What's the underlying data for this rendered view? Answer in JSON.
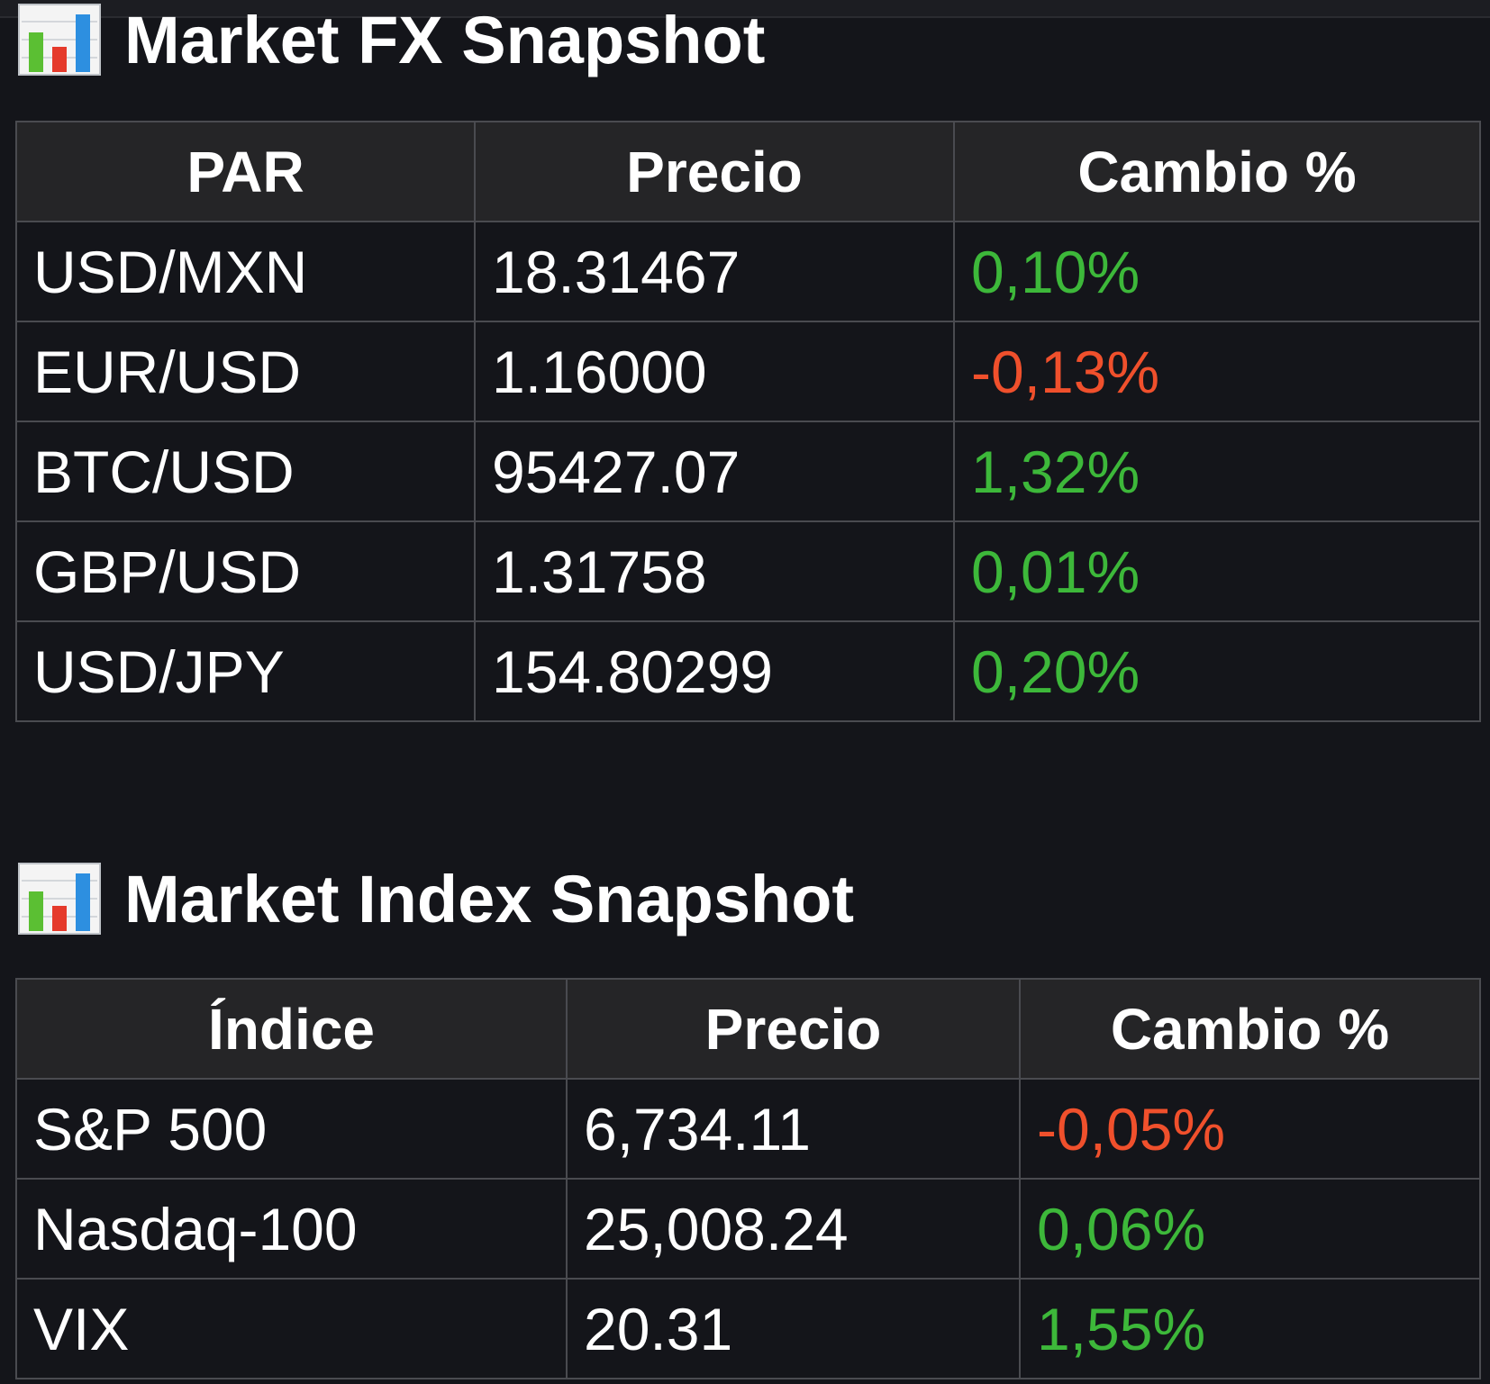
{
  "colors": {
    "background": "#14151a",
    "header_background": "#252527",
    "border": "#4a4b50",
    "positive": "#3db83a",
    "negative": "#f0502c"
  },
  "fx": {
    "icon": "bar-chart-icon",
    "title": "Market FX Snapshot",
    "headers": [
      "PAR",
      "Precio",
      "Cambio %"
    ],
    "rows": [
      {
        "pair": "USD/MXN",
        "price": "18.31467",
        "change": "0,10%",
        "direction": "up"
      },
      {
        "pair": "EUR/USD",
        "price": "1.16000",
        "change": "-0,13%",
        "direction": "down"
      },
      {
        "pair": "BTC/USD",
        "price": "95427.07",
        "change": "1,32%",
        "direction": "up"
      },
      {
        "pair": "GBP/USD",
        "price": "1.31758",
        "change": "0,01%",
        "direction": "up"
      },
      {
        "pair": "USD/JPY",
        "price": "154.80299",
        "change": "0,20%",
        "direction": "up"
      }
    ]
  },
  "index": {
    "icon": "bar-chart-icon",
    "title": "Market Index Snapshot",
    "headers": [
      "Índice",
      "Precio",
      "Cambio %"
    ],
    "rows": [
      {
        "name": "S&P 500",
        "price": "6,734.11",
        "change": "-0,05%",
        "direction": "down"
      },
      {
        "name": "Nasdaq-100",
        "price": "25,008.24",
        "change": "0,06%",
        "direction": "up"
      },
      {
        "name": "VIX",
        "price": "20.31",
        "change": "1,55%",
        "direction": "up"
      }
    ]
  }
}
